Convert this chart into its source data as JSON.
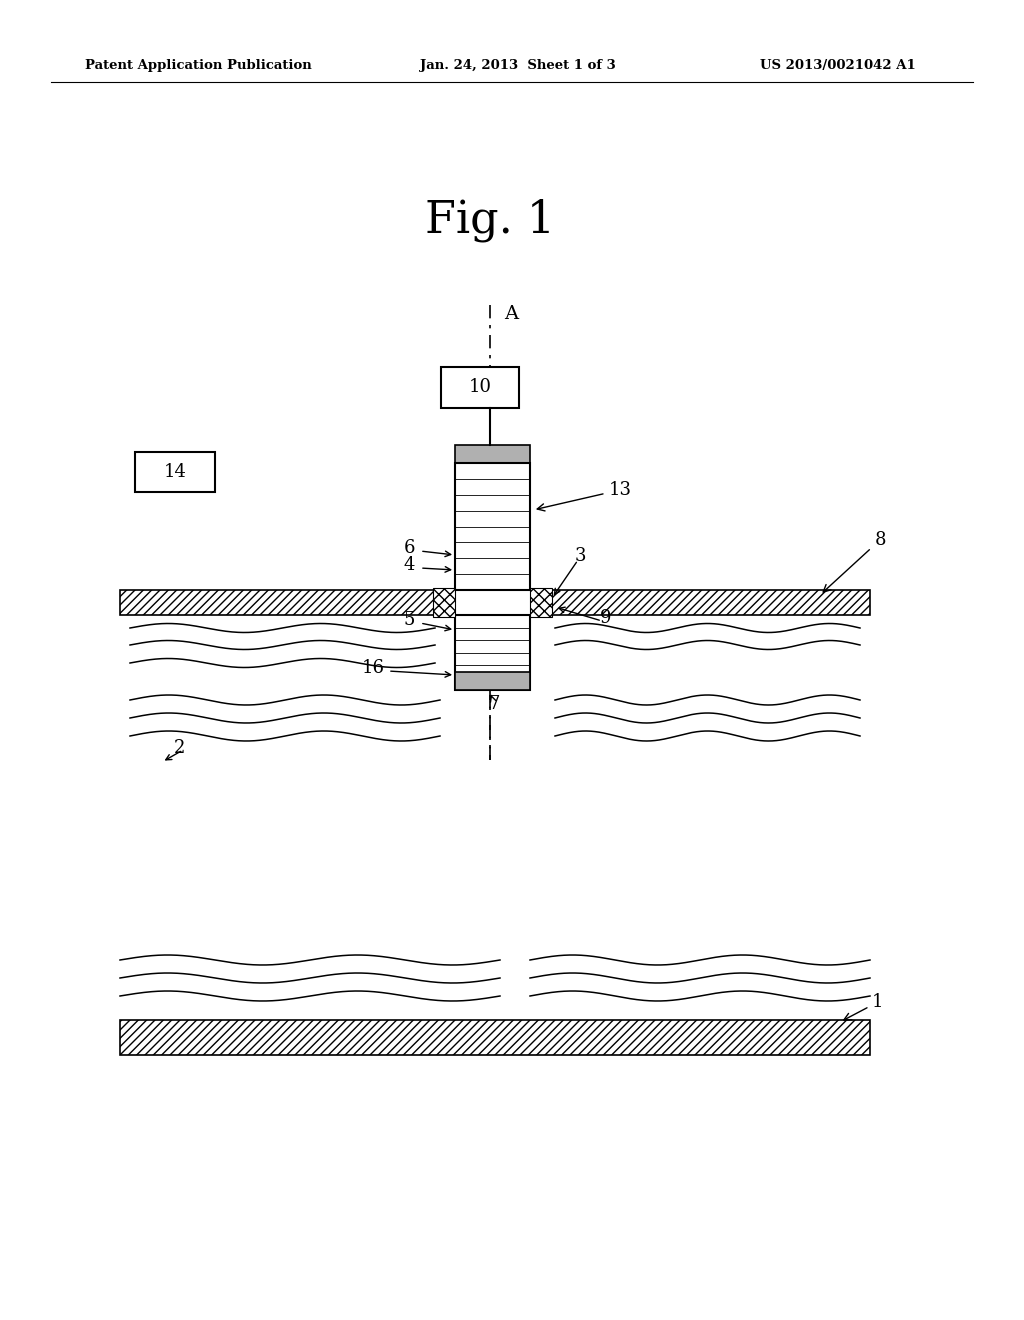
{
  "bg_color": "#ffffff",
  "header_left": "Patent Application Publication",
  "header_center": "Jan. 24, 2013  Sheet 1 of 3",
  "header_right": "US 2013/0021042 A1",
  "fig_label": "Fig. 1"
}
